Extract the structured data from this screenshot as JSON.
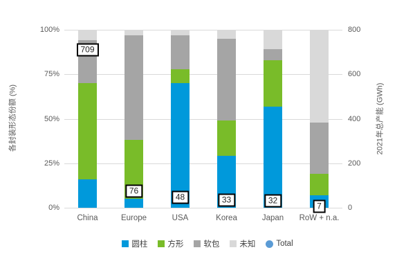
{
  "colors": {
    "cylinder_blue": "#0099DB",
    "prismatic_green": "#79BC29",
    "pouch_gray": "#A5A5A5",
    "unknown_lightgray": "#D9D9D9",
    "total_dot_blue": "#5B9BD5",
    "gridline": "#D9D9D9",
    "axis_text": "#595959",
    "label_text": "#262626"
  },
  "left_axis": {
    "title": "各封装形态份额 (%)",
    "ticks": [
      "0%",
      "25%",
      "50%",
      "75%",
      "100%"
    ]
  },
  "right_axis": {
    "title": "2021年总产能 (GWh)",
    "ticks": [
      "0",
      "200",
      "400",
      "600",
      "800"
    ]
  },
  "chart_data": {
    "type": "bar",
    "stacked": true,
    "grid": true,
    "legend_position": "bottom",
    "categories": [
      "China",
      "Europe",
      "USA",
      "Korea",
      "Japan",
      "RoW + n.a."
    ],
    "series": [
      {
        "name": "圆柱",
        "color": "#0099DB",
        "axis": "left",
        "unit": "%",
        "values": [
          16,
          5,
          70,
          29,
          57,
          7
        ]
      },
      {
        "name": "方形",
        "color": "#79BC29",
        "axis": "left",
        "unit": "%",
        "values": [
          54,
          33,
          8,
          20,
          26,
          12
        ]
      },
      {
        "name": "软包",
        "color": "#A5A5A5",
        "axis": "left",
        "unit": "%",
        "values": [
          24,
          59,
          19,
          46,
          6,
          29
        ]
      },
      {
        "name": "未知",
        "color": "#D9D9D9",
        "axis": "left",
        "unit": "%",
        "values": [
          6,
          3,
          3,
          5,
          11,
          52
        ]
      }
    ],
    "total_series": {
      "name": "Total",
      "color": "#5B9BD5",
      "axis": "right",
      "unit": "GWh",
      "values": [
        709,
        76,
        48,
        33,
        32,
        7
      ],
      "label_style": "boxed"
    },
    "ylabel_left": "各封装形态份额 (%)",
    "ylabel_right": "2021年总产能 (GWh)",
    "ylim_left": [
      0,
      100
    ],
    "ylim_right": [
      0,
      800
    ],
    "left_tick_step": 25,
    "right_tick_step": 200
  },
  "legend": {
    "items": [
      {
        "label": "圆柱",
        "shape": "square",
        "color": "#0099DB"
      },
      {
        "label": "方形",
        "shape": "square",
        "color": "#79BC29"
      },
      {
        "label": "软包",
        "shape": "square",
        "color": "#A5A5A5"
      },
      {
        "label": "未知",
        "shape": "square",
        "color": "#D9D9D9"
      },
      {
        "label": "Total",
        "shape": "circle",
        "color": "#5B9BD5"
      }
    ]
  }
}
